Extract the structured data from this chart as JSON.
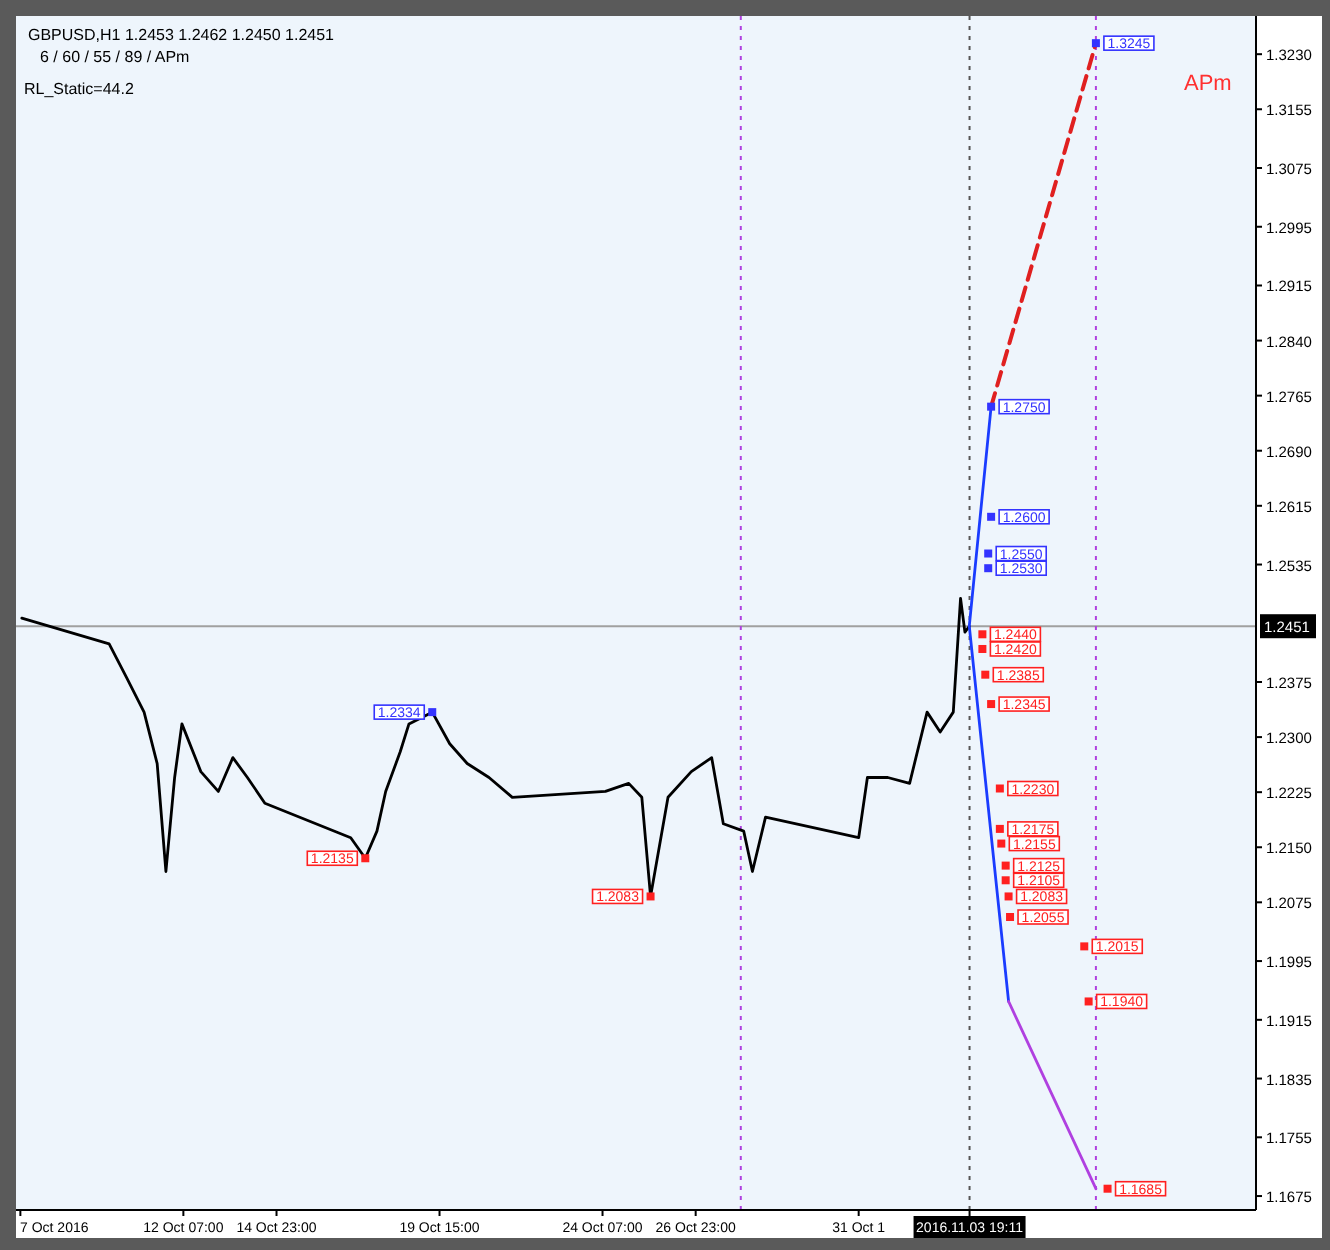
{
  "chart_data": {
    "type": "line",
    "title": "GBPUSD,H1  1.2453 1.2462 1.2450 1.2451",
    "subtitle": "6 / 60 / 55 / 89 / APm",
    "annotations": [
      "RL_Static=44.2",
      "APm"
    ],
    "xlim": [
      "2016-10-07T12:00",
      "2016-11-12T00:00"
    ],
    "xticks": [
      {
        "value": "2016-10-07T15:00",
        "label": "7 Oct 2016"
      },
      {
        "value": "2016-10-12T07:00",
        "label": "12 Oct 07:00"
      },
      {
        "value": "2016-10-14T23:00",
        "label": "14 Oct 23:00"
      },
      {
        "value": "2016-10-19T15:00",
        "label": "19 Oct 15:00"
      },
      {
        "value": "2016-10-24T07:00",
        "label": "24 Oct 07:00"
      },
      {
        "value": "2016-10-26T23:00",
        "label": "26 Oct 23:00"
      },
      {
        "value": "2016-10-31T15:00",
        "label": "31 Oct 1"
      },
      {
        "value": "2016-11-03T19:11",
        "label": "2016.11.03 19:11"
      }
    ],
    "ylim": [
      1.1656,
      1.3282
    ],
    "yticks": [
      1.1675,
      1.1755,
      1.1835,
      1.1915,
      1.1995,
      1.2075,
      {
        "value": 1.215,
        "label": "1.2150"
      },
      1.2225,
      {
        "value": 1.23,
        "label": "1.2300"
      },
      1.2375,
      1.2535,
      1.2615,
      {
        "value": 1.269,
        "label": "1.2690"
      },
      1.2765,
      {
        "value": 1.284,
        "label": "1.2840"
      },
      1.2915,
      1.2995,
      1.3075,
      1.3155,
      {
        "value": 1.323,
        "label": "1.3230"
      }
    ],
    "ref_lines": [
      {
        "axis": "y",
        "value": 1.2451,
        "label": "1.2451",
        "color": "#a0a0a0",
        "line_style": "solid"
      },
      {
        "axis": "x",
        "value": "2016-11-03T19:11",
        "color": "#555555",
        "line_style": "dotted"
      },
      {
        "axis": "x",
        "value": "2016-10-28T06:00",
        "color": "#b040e0",
        "line_style": "dotted"
      },
      {
        "axis": "x",
        "value": "2016-11-07T10:00",
        "color": "#b040e0",
        "line_style": "dotted"
      }
    ],
    "series": [
      {
        "color": "#000000",
        "line_style": "solid",
        "x": [
          "2016-10-07T16:00",
          "2016-10-10T04:00",
          "2016-10-10T16:00",
          "2016-10-11T04:00",
          "2016-10-11T13:00",
          "2016-10-11T19:00",
          "2016-10-12T01:00",
          "2016-10-12T06:00",
          "2016-10-12T19:00",
          "2016-10-13T07:00",
          "2016-10-13T17:00",
          "2016-10-14T03:00",
          "2016-10-14T15:00",
          "2016-10-17T02:00",
          "2016-10-17T12:00",
          "2016-10-17T20:00",
          "2016-10-18T02:00",
          "2016-10-18T12:00",
          "2016-10-18T18:00",
          "2016-10-19T10:00",
          "2016-10-19T22:00",
          "2016-10-20T10:00",
          "2016-10-21T01:00",
          "2016-10-21T17:00",
          "2016-10-24T09:00",
          "2016-10-25T01:00",
          "2016-10-25T10:00",
          "2016-10-25T16:00",
          "2016-10-26T04:00",
          "2016-10-26T20:00",
          "2016-10-27T10:00",
          "2016-10-27T18:00",
          "2016-10-28T08:00",
          "2016-10-28T14:00",
          "2016-10-28T23:00",
          "2016-10-31T15:00",
          "2016-10-31T21:00",
          "2016-11-01T11:00",
          "2016-11-02T02:00",
          "2016-11-02T14:00",
          "2016-11-02T23:00",
          "2016-11-03T08:00",
          "2016-11-03T13:00",
          "2016-11-03T16:00",
          "2016-11-03T19:00"
        ],
        "values": [
          1.2462,
          1.2427,
          1.2381,
          1.2334,
          1.2264,
          1.2117,
          1.2245,
          1.2318,
          1.2253,
          1.2226,
          1.2272,
          1.2245,
          1.221,
          1.2163,
          1.2135,
          1.2172,
          1.2226,
          1.228,
          1.2318,
          1.2334,
          1.2291,
          1.2264,
          1.2245,
          1.2218,
          1.2226,
          1.2237,
          1.2218,
          1.2083,
          1.2218,
          1.2253,
          1.2272,
          1.2182,
          1.2172,
          1.2117,
          1.2191,
          1.2163,
          1.2245,
          1.2245,
          1.2237,
          1.2334,
          1.2307,
          1.2334,
          1.2489,
          1.2443,
          1.2451
        ]
      },
      {
        "color": "#1a3cff",
        "line_style": "solid",
        "x": [
          "2016-11-04T10:00",
          "2016-11-03T19:00",
          "2016-11-04T22:00"
        ],
        "values": [
          1.275,
          1.2451,
          1.194
        ]
      },
      {
        "color": "#e02020",
        "line_style": "dashed",
        "x": [
          "2016-11-04T10:00",
          "2016-11-07T10:00"
        ],
        "values": [
          1.275,
          1.3245
        ]
      },
      {
        "color": "#b040e0",
        "line_style": "solid",
        "x": [
          "2016-11-04T22:00",
          "2016-11-07T10:00"
        ],
        "values": [
          1.194,
          1.1685
        ]
      },
      {
        "type": "scatter",
        "marker": "square",
        "color": "#3333ff",
        "x": [
          "2016-11-07T10:00",
          "2016-11-04T10:00",
          "2016-11-04T10:00",
          "2016-11-04T08:00",
          "2016-11-04T08:00",
          "2016-10-19T10:00"
        ],
        "values": [
          1.3245,
          1.275,
          1.26,
          1.255,
          1.253,
          1.2334
        ],
        "value_labels": [
          "1.3245",
          "1.2750",
          "1.2600",
          "1.2550",
          "1.2530",
          "1.2334"
        ]
      },
      {
        "type": "scatter",
        "marker": "square",
        "color": "#ff2020",
        "x": [
          "2016-11-04T04:00",
          "2016-11-04T04:00",
          "2016-11-04T06:00",
          "2016-11-04T10:00",
          "2016-11-04T16:00",
          "2016-11-04T16:00",
          "2016-11-04T17:00",
          "2016-11-04T20:00",
          "2016-11-04T20:00",
          "2016-11-04T22:00",
          "2016-11-04T23:00",
          "2016-11-07T02:00",
          "2016-11-07T05:00",
          "2016-11-07T18:00",
          "2016-10-17T12:00",
          "2016-10-25T16:00"
        ],
        "values": [
          1.244,
          1.242,
          1.2385,
          1.2345,
          1.223,
          1.2175,
          1.2155,
          1.2125,
          1.2105,
          1.2083,
          1.2055,
          1.2015,
          1.194,
          1.1685,
          1.2135,
          1.2083
        ],
        "value_labels": [
          "1.2440",
          "1.2420",
          "1.2385",
          "1.2345",
          "1.2230",
          "1.2175",
          "1.2155",
          "1.2125",
          "1.2105",
          "1.2083",
          "1.2055",
          "1.2015",
          "1.1940",
          "1.1685",
          "1.2135",
          "1.2083"
        ]
      }
    ]
  }
}
